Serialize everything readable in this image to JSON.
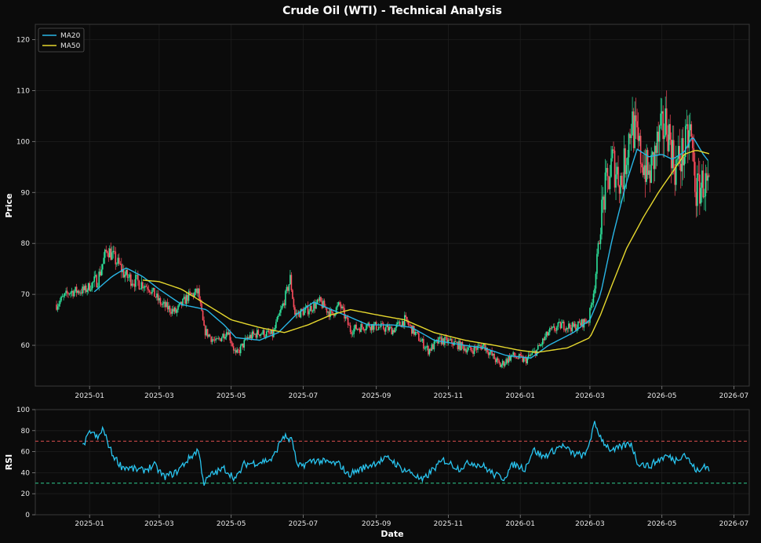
{
  "chart_data": {
    "title": "Crude Oil (WTI) - Technical Analysis",
    "colors": {
      "background": "#0b0b0b",
      "up": "#2ee59d",
      "down": "#ff4d5e",
      "ma20": "#29b6e6",
      "ma50": "#e6d82e",
      "rsi": "#29c5f0",
      "overbought": "#e05050",
      "oversold": "#2ecc8f",
      "grid": "#1e1e1e"
    },
    "price_panel": {
      "type": "candlestick",
      "ylabel": "Price",
      "ylim": [
        52,
        123
      ],
      "yticks": [
        60,
        70,
        80,
        90,
        100,
        110,
        120
      ],
      "xlim": [
        "2024-11-16",
        "2026-07-14"
      ],
      "xticks": [
        "2025-01",
        "2025-03",
        "2025-05",
        "2025-07",
        "2025-09",
        "2025-11",
        "2026-01",
        "2026-03",
        "2026-05",
        "2026-07"
      ],
      "grid": true,
      "legend_position": "top-left",
      "legend": [
        "MA20",
        "MA50"
      ],
      "close_anchors": [
        [
          "2024-12-04",
          68
        ],
        [
          "2024-12-15",
          70.5
        ],
        [
          "2024-12-28",
          70.8
        ],
        [
          "2025-01-08",
          73
        ],
        [
          "2025-01-16",
          79
        ],
        [
          "2025-01-25",
          76
        ],
        [
          "2025-02-01",
          73.5
        ],
        [
          "2025-02-10",
          72.5
        ],
        [
          "2025-02-20",
          71.5
        ],
        [
          "2025-03-03",
          68
        ],
        [
          "2025-03-15",
          66.5
        ],
        [
          "2025-03-25",
          69.5
        ],
        [
          "2025-04-03",
          70.5
        ],
        [
          "2025-04-08",
          63
        ],
        [
          "2025-04-18",
          60.5
        ],
        [
          "2025-04-28",
          63
        ],
        [
          "2025-05-05",
          58
        ],
        [
          "2025-05-15",
          61.5
        ],
        [
          "2025-05-25",
          62.5
        ],
        [
          "2025-06-05",
          62
        ],
        [
          "2025-06-14",
          68
        ],
        [
          "2025-06-20",
          73
        ],
        [
          "2025-06-24",
          66
        ],
        [
          "2025-07-05",
          67
        ],
        [
          "2025-07-15",
          68.5
        ],
        [
          "2025-07-25",
          66
        ],
        [
          "2025-08-01",
          68
        ],
        [
          "2025-08-10",
          63
        ],
        [
          "2025-08-25",
          64
        ],
        [
          "2025-09-05",
          63.5
        ],
        [
          "2025-09-15",
          63
        ],
        [
          "2025-09-25",
          65
        ],
        [
          "2025-10-05",
          62
        ],
        [
          "2025-10-15",
          59
        ],
        [
          "2025-10-25",
          61
        ],
        [
          "2025-11-05",
          60.5
        ],
        [
          "2025-11-20",
          59
        ],
        [
          "2025-12-01",
          60
        ],
        [
          "2025-12-15",
          56
        ],
        [
          "2025-12-25",
          58
        ],
        [
          "2026-01-05",
          57
        ],
        [
          "2026-01-15",
          59
        ],
        [
          "2026-01-25",
          62.5
        ],
        [
          "2026-02-05",
          64
        ],
        [
          "2026-02-15",
          63.5
        ],
        [
          "2026-02-28",
          65
        ],
        [
          "2026-03-05",
          72
        ],
        [
          "2026-03-12",
          88
        ],
        [
          "2026-03-20",
          96
        ],
        [
          "2026-03-28",
          92
        ],
        [
          "2026-04-05",
          104
        ],
        [
          "2026-04-12",
          98
        ],
        [
          "2026-04-20",
          93
        ],
        [
          "2026-04-28",
          100
        ],
        [
          "2026-05-05",
          104
        ],
        [
          "2026-05-12",
          95
        ],
        [
          "2026-05-20",
          98
        ],
        [
          "2026-05-25",
          102
        ],
        [
          "2026-05-30",
          90
        ],
        [
          "2026-06-05",
          92
        ],
        [
          "2026-06-10",
          90
        ]
      ],
      "ma20_anchors": [
        [
          "2025-01-05",
          70.5
        ],
        [
          "2025-01-20",
          73.5
        ],
        [
          "2025-02-01",
          75.2
        ],
        [
          "2025-02-15",
          73.5
        ],
        [
          "2025-03-01",
          71
        ],
        [
          "2025-03-20",
          68
        ],
        [
          "2025-04-10",
          67
        ],
        [
          "2025-04-25",
          64
        ],
        [
          "2025-05-05",
          61.5
        ],
        [
          "2025-05-25",
          61
        ],
        [
          "2025-06-10",
          62.5
        ],
        [
          "2025-06-25",
          66
        ],
        [
          "2025-07-10",
          68.5
        ],
        [
          "2025-07-25",
          67
        ],
        [
          "2025-08-10",
          65.5
        ],
        [
          "2025-08-25",
          64
        ],
        [
          "2025-09-15",
          64
        ],
        [
          "2025-10-01",
          63.5
        ],
        [
          "2025-10-20",
          61
        ],
        [
          "2025-11-15",
          60
        ],
        [
          "2025-12-01",
          59.5
        ],
        [
          "2025-12-20",
          58
        ],
        [
          "2026-01-10",
          57.5
        ],
        [
          "2026-01-25",
          60
        ],
        [
          "2026-02-15",
          62.5
        ],
        [
          "2026-03-01",
          65
        ],
        [
          "2026-03-10",
          70
        ],
        [
          "2026-03-20",
          81
        ],
        [
          "2026-04-01",
          92
        ],
        [
          "2026-04-10",
          98.5
        ],
        [
          "2026-04-20",
          97
        ],
        [
          "2026-05-01",
          97.5
        ],
        [
          "2026-05-10",
          96.5
        ],
        [
          "2026-05-20",
          98
        ],
        [
          "2026-05-27",
          101
        ],
        [
          "2026-06-05",
          97.5
        ],
        [
          "2026-06-10",
          96
        ]
      ],
      "ma50_anchors": [
        [
          "2025-02-15",
          72.8
        ],
        [
          "2025-03-01",
          72.5
        ],
        [
          "2025-03-20",
          71
        ],
        [
          "2025-04-10",
          68
        ],
        [
          "2025-05-01",
          65
        ],
        [
          "2025-05-25",
          63.5
        ],
        [
          "2025-06-15",
          62.5
        ],
        [
          "2025-07-05",
          64
        ],
        [
          "2025-07-25",
          66
        ],
        [
          "2025-08-10",
          67
        ],
        [
          "2025-09-01",
          66
        ],
        [
          "2025-09-25",
          65
        ],
        [
          "2025-10-20",
          62.5
        ],
        [
          "2025-11-15",
          61
        ],
        [
          "2025-12-10",
          60
        ],
        [
          "2026-01-01",
          59
        ],
        [
          "2026-01-15",
          58.6
        ],
        [
          "2026-02-10",
          59.5
        ],
        [
          "2026-03-01",
          61.5
        ],
        [
          "2026-03-10",
          66
        ],
        [
          "2026-03-20",
          72
        ],
        [
          "2026-04-01",
          79
        ],
        [
          "2026-04-15",
          85
        ],
        [
          "2026-04-28",
          90
        ],
        [
          "2026-05-10",
          94
        ],
        [
          "2026-05-20",
          97.5
        ],
        [
          "2026-05-30",
          98.3
        ],
        [
          "2026-06-10",
          97.6
        ]
      ]
    },
    "rsi_panel": {
      "type": "line",
      "ylabel": "RSI",
      "xlabel": "Date",
      "ylim": [
        0,
        100
      ],
      "yticks": [
        0,
        20,
        40,
        60,
        80,
        100
      ],
      "overbought": 70,
      "oversold": 30,
      "grid": true,
      "anchors": [
        [
          "2024-12-26",
          64
        ],
        [
          "2025-01-02",
          80
        ],
        [
          "2025-01-08",
          72
        ],
        [
          "2025-01-12",
          82
        ],
        [
          "2025-01-20",
          58
        ],
        [
          "2025-01-28",
          46
        ],
        [
          "2025-02-05",
          44
        ],
        [
          "2025-02-15",
          42
        ],
        [
          "2025-02-25",
          47
        ],
        [
          "2025-03-05",
          36
        ],
        [
          "2025-03-15",
          40
        ],
        [
          "2025-03-25",
          52
        ],
        [
          "2025-04-03",
          62
        ],
        [
          "2025-04-08",
          30
        ],
        [
          "2025-04-14",
          38
        ],
        [
          "2025-04-25",
          44
        ],
        [
          "2025-05-05",
          34
        ],
        [
          "2025-05-12",
          48
        ],
        [
          "2025-05-25",
          50
        ],
        [
          "2025-06-05",
          53
        ],
        [
          "2025-06-14",
          75
        ],
        [
          "2025-06-22",
          70
        ],
        [
          "2025-06-26",
          45
        ],
        [
          "2025-07-10",
          52
        ],
        [
          "2025-07-20",
          50
        ],
        [
          "2025-08-01",
          48
        ],
        [
          "2025-08-08",
          38
        ],
        [
          "2025-08-20",
          44
        ],
        [
          "2025-09-01",
          50
        ],
        [
          "2025-09-12",
          54
        ],
        [
          "2025-09-22",
          44
        ],
        [
          "2025-10-01",
          40
        ],
        [
          "2025-10-10",
          32
        ],
        [
          "2025-10-18",
          42
        ],
        [
          "2025-10-28",
          52
        ],
        [
          "2025-11-10",
          44
        ],
        [
          "2025-11-20",
          50
        ],
        [
          "2025-12-01",
          46
        ],
        [
          "2025-12-10",
          38
        ],
        [
          "2025-12-18",
          35
        ],
        [
          "2025-12-26",
          48
        ],
        [
          "2026-01-05",
          44
        ],
        [
          "2026-01-12",
          62
        ],
        [
          "2026-01-20",
          55
        ],
        [
          "2026-01-28",
          60
        ],
        [
          "2026-02-05",
          66
        ],
        [
          "2026-02-15",
          58
        ],
        [
          "2026-02-25",
          56
        ],
        [
          "2026-03-05",
          86
        ],
        [
          "2026-03-12",
          70
        ],
        [
          "2026-03-20",
          60
        ],
        [
          "2026-03-28",
          65
        ],
        [
          "2026-04-05",
          68
        ],
        [
          "2026-04-10",
          50
        ],
        [
          "2026-04-20",
          46
        ],
        [
          "2026-04-28",
          52
        ],
        [
          "2026-05-05",
          56
        ],
        [
          "2026-05-12",
          52
        ],
        [
          "2026-05-20",
          58
        ],
        [
          "2026-05-28",
          45
        ],
        [
          "2026-06-02",
          40
        ],
        [
          "2026-06-06",
          48
        ],
        [
          "2026-06-10",
          43
        ]
      ]
    }
  }
}
